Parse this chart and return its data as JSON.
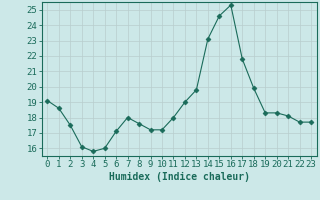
{
  "x": [
    0,
    1,
    2,
    3,
    4,
    5,
    6,
    7,
    8,
    9,
    10,
    11,
    12,
    13,
    14,
    15,
    16,
    17,
    18,
    19,
    20,
    21,
    22,
    23
  ],
  "y": [
    19.1,
    18.6,
    17.5,
    16.1,
    15.8,
    16.0,
    17.1,
    18.0,
    17.6,
    17.2,
    17.2,
    18.0,
    19.0,
    19.8,
    23.1,
    24.6,
    25.3,
    21.8,
    19.9,
    18.3,
    18.3,
    18.1,
    17.7,
    17.7
  ],
  "line_color": "#1a6b5a",
  "marker": "D",
  "marker_size": 2.5,
  "bg_color": "#cce8e8",
  "grid_color": "#b8cece",
  "xlabel": "Humidex (Indice chaleur)",
  "xlim": [
    -0.5,
    23.5
  ],
  "ylim": [
    15.5,
    25.5
  ],
  "yticks": [
    16,
    17,
    18,
    19,
    20,
    21,
    22,
    23,
    24,
    25
  ],
  "xtick_labels": [
    "0",
    "1",
    "2",
    "3",
    "4",
    "5",
    "6",
    "7",
    "8",
    "9",
    "10",
    "11",
    "12",
    "13",
    "14",
    "15",
    "16",
    "17",
    "18",
    "19",
    "20",
    "21",
    "22",
    "23"
  ],
  "xlabel_color": "#1a6b5a",
  "tick_color": "#1a6b5a",
  "axis_color": "#1a6b5a",
  "label_fontsize": 7,
  "tick_fontsize": 6.5
}
